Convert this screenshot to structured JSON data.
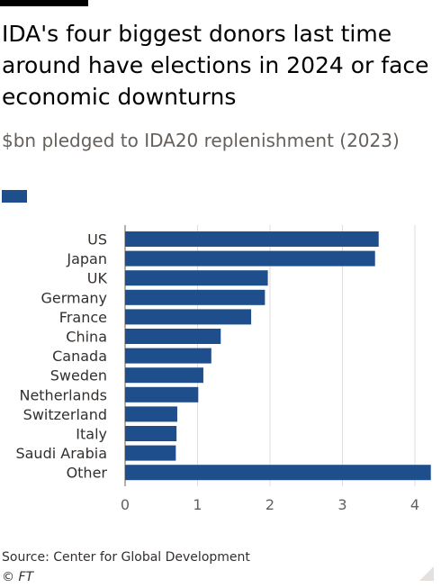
{
  "header": {
    "title": "IDA's four biggest donors last time around have elections in 2024 or face economic downturns",
    "subtitle": "$bn pledged to IDA20 replenishment (2023)"
  },
  "footer": {
    "source": "Source: Center for Global Development",
    "copyright": "© FT"
  },
  "colors": {
    "bar": "#1f4e8c",
    "grid": "#e0dcd8",
    "baseline": "#66605c"
  },
  "chart_data": {
    "type": "bar",
    "orientation": "horizontal",
    "title": "IDA's four biggest donors last time around have elections in 2024 or face economic downturns",
    "subtitle": "$bn pledged to IDA20 replenishment (2023)",
    "categories": [
      "US",
      "Japan",
      "UK",
      "Germany",
      "France",
      "China",
      "Canada",
      "Sweden",
      "Netherlands",
      "Switzerland",
      "Italy",
      "Saudi Arabia",
      "Other"
    ],
    "values": [
      3.5,
      3.45,
      1.97,
      1.93,
      1.74,
      1.32,
      1.19,
      1.08,
      1.01,
      0.72,
      0.71,
      0.7,
      4.22
    ],
    "xlim": [
      0,
      4.3
    ],
    "xticks": [
      0,
      1,
      2,
      3,
      4
    ],
    "grid": true,
    "legend": "top-left"
  }
}
